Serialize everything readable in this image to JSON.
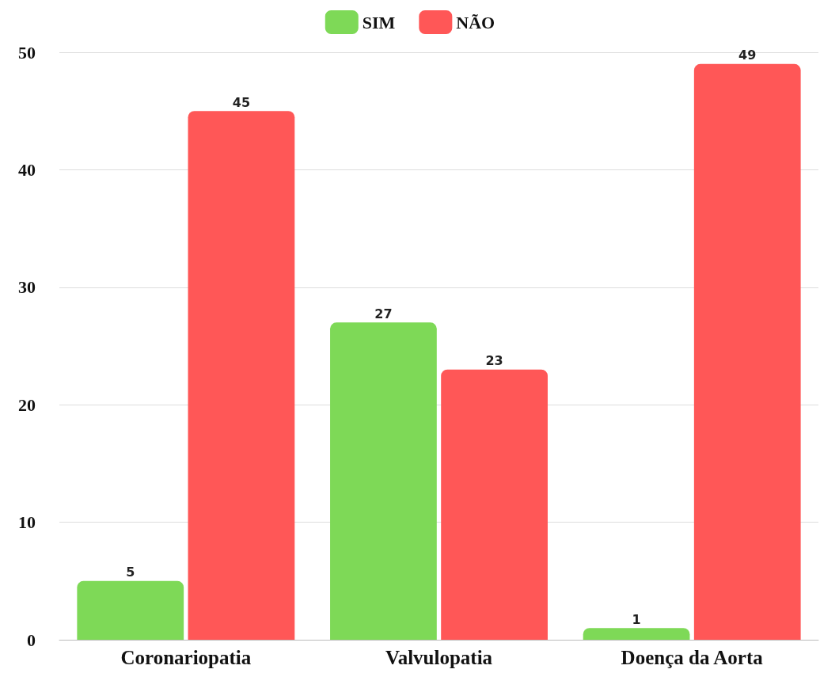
{
  "chart_data": {
    "type": "bar",
    "categories": [
      "Coronariopatia",
      "Valvulopatia",
      "Doença da Aorta"
    ],
    "series": [
      {
        "name": "SIM",
        "color": "#7ed957",
        "values": [
          5,
          27,
          1
        ]
      },
      {
        "name": "NÃO",
        "color": "#ff5757",
        "values": [
          45,
          23,
          49
        ]
      }
    ],
    "ylim": [
      0,
      50
    ],
    "yticks": [
      0,
      10,
      20,
      30,
      40,
      50
    ],
    "grid": "y",
    "legend": "top",
    "data_labels": true
  }
}
